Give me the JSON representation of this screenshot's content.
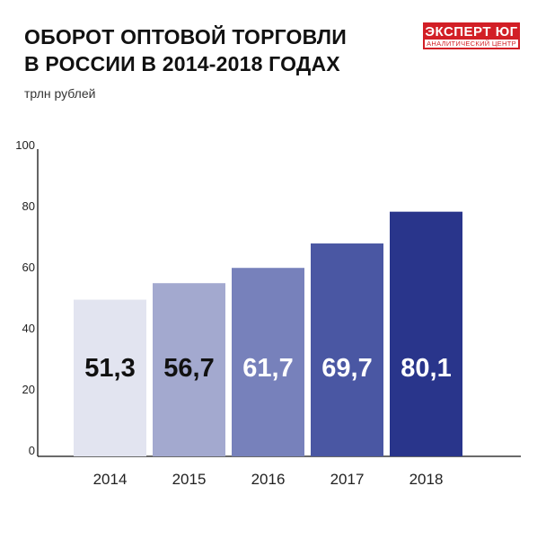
{
  "header": {
    "title_line1": "ОБОРОТ ОПТОВОЙ ТОРГОВЛИ",
    "title_line2": "В РОССИИ В 2014-2018 ГОДАХ",
    "unit": "трлн рублей"
  },
  "logo": {
    "name": "ЭКСПЕРТ ЮГ",
    "subtitle": "АНАЛИТИЧЕСКИЙ ЦЕНТР",
    "color": "#d21f26"
  },
  "chart_data": {
    "type": "bar",
    "categories": [
      "2014",
      "2015",
      "2016",
      "2017",
      "2018"
    ],
    "values": [
      51.3,
      56.7,
      61.7,
      69.7,
      80.1
    ],
    "value_labels": [
      "51,3",
      "56,7",
      "61,7",
      "69,7",
      "80,1"
    ],
    "bar_colors": [
      "#e2e4f0",
      "#a3a9cf",
      "#7781bb",
      "#4a57a3",
      "#29358b"
    ],
    "label_colors": [
      "#111111",
      "#111111",
      "#ffffff",
      "#ffffff",
      "#ffffff"
    ],
    "title": "ОБОРОТ ОПТОВОЙ ТОРГОВЛИ В РОССИИ В 2014-2018 ГОДАХ",
    "ylabel": "трлн рублей",
    "ylim": [
      0,
      100
    ],
    "yticks": [
      0,
      20,
      40,
      60,
      80,
      100
    ],
    "grid": false
  }
}
